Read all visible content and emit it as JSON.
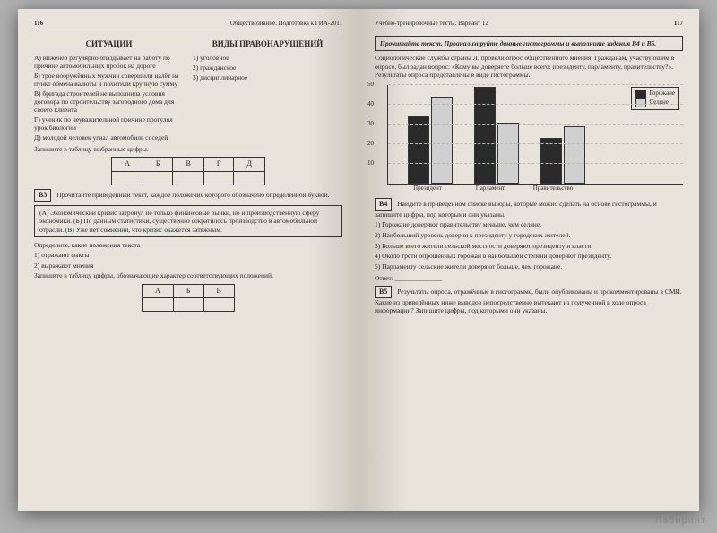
{
  "leftPage": {
    "pageNum": "116",
    "headerText": "Обществознание. Подготовка к ГИА-2011",
    "col1Title": "СИТУАЦИИ",
    "col2Title": "ВИДЫ ПРАВОНАРУШЕНИЙ",
    "situations": {
      "a": "А) инженер регулярно опаздывает на работу по причине автомобильных пробок на дороге",
      "b": "Б) трое вооружённых мужчин совершили налёт на пункт обмена валюты и похитили крупную сумму",
      "v": "В) бригада строителей не выполнила условия договора по строительству загородного дома для своего клиента",
      "g": "Г) ученик по неуважительной причине прогулял урок биологии",
      "d": "Д) молодой человек угнал автомобиль соседей"
    },
    "types": {
      "t1": "1) уголовное",
      "t2": "2) гражданское",
      "t3": "3) дисциплинарное"
    },
    "tableInstr": "Запишите в таблицу выбранные цифры.",
    "tableHeaders": [
      "А",
      "Б",
      "В",
      "Г",
      "Д"
    ],
    "b3": {
      "label": "В3",
      "instr": "Прочитайте приведённый текст, каждое положение которого обозначено определённой буквой.",
      "boxed": "(А) Экономический кризис затронул не только финансовые рынки, но и производственную сферу экономики. (Б) По данным статистики, существенно сократилось производство в автомобильной отрасли. (В) Уже нет сомнений, что кризис окажется затяжным.",
      "task": "Определите, какие положения текста",
      "opt1": "1) отражают факты",
      "opt2": "2) выражают мнения",
      "tableInstr": "Запишите в таблицу цифры, обозначающие характер соответствующих положений.",
      "tableHeaders": [
        "А",
        "Б",
        "В"
      ]
    }
  },
  "rightPage": {
    "pageNum": "117",
    "headerText": "Учебно-тренировочные тесты. Вариант 12",
    "topInstr": "Прочитайте текст. Проанализируйте данные гистограммы и выполните задания В4 и В5.",
    "introText": "Социологические службы страны Л. провели опрос общественного мнения. Гражданам, участвующим в опросе, был задан вопрос: «Кому вы доверяете больше всего: президенту, парламенту, правительству?». Результаты опроса представлены в виде гистограммы.",
    "chart": {
      "ylim": [
        0,
        50
      ],
      "yticks": [
        10,
        20,
        30,
        40,
        50
      ],
      "categories": [
        "Президент",
        "Парламент",
        "Правительство"
      ],
      "series": [
        {
          "name": "Горожане",
          "color": "#2a2a2a",
          "values": [
            33,
            48,
            22
          ]
        },
        {
          "name": "Селяне",
          "color": "#d0d0d0",
          "values": [
            43,
            30,
            28
          ]
        }
      ]
    },
    "b4": {
      "label": "В4",
      "instr": "Найдите в приведённом списке выводы, которые можно сделать на основе гистограммы, и запишите цифры, под которыми они указаны.",
      "items": {
        "i1": "1) Горожане доверяют правительству меньше, чем селяне.",
        "i2": "2) Наибольший уровень доверия к президенту у городских жителей.",
        "i3": "3) Больше всего жители сельской местности доверяют президенту и власти.",
        "i4": "4) Около трети опрошенных горожан в наибольшей степени доверяют президенту.",
        "i5": "5) Парламенту сельские жители доверяют больше, чем горожане."
      },
      "answer": "Ответ: ______________"
    },
    "b5": {
      "label": "В5",
      "text": "Результаты опроса, отражённые в гистограмме, были опубликованы и прокомментированы в СМИ. Какие из приведённых ниже выводов непосредственно вытекают из полученной в ходе опроса информации? Запишите цифры, под которыми они указаны."
    }
  },
  "watermark": "Лабиринт"
}
